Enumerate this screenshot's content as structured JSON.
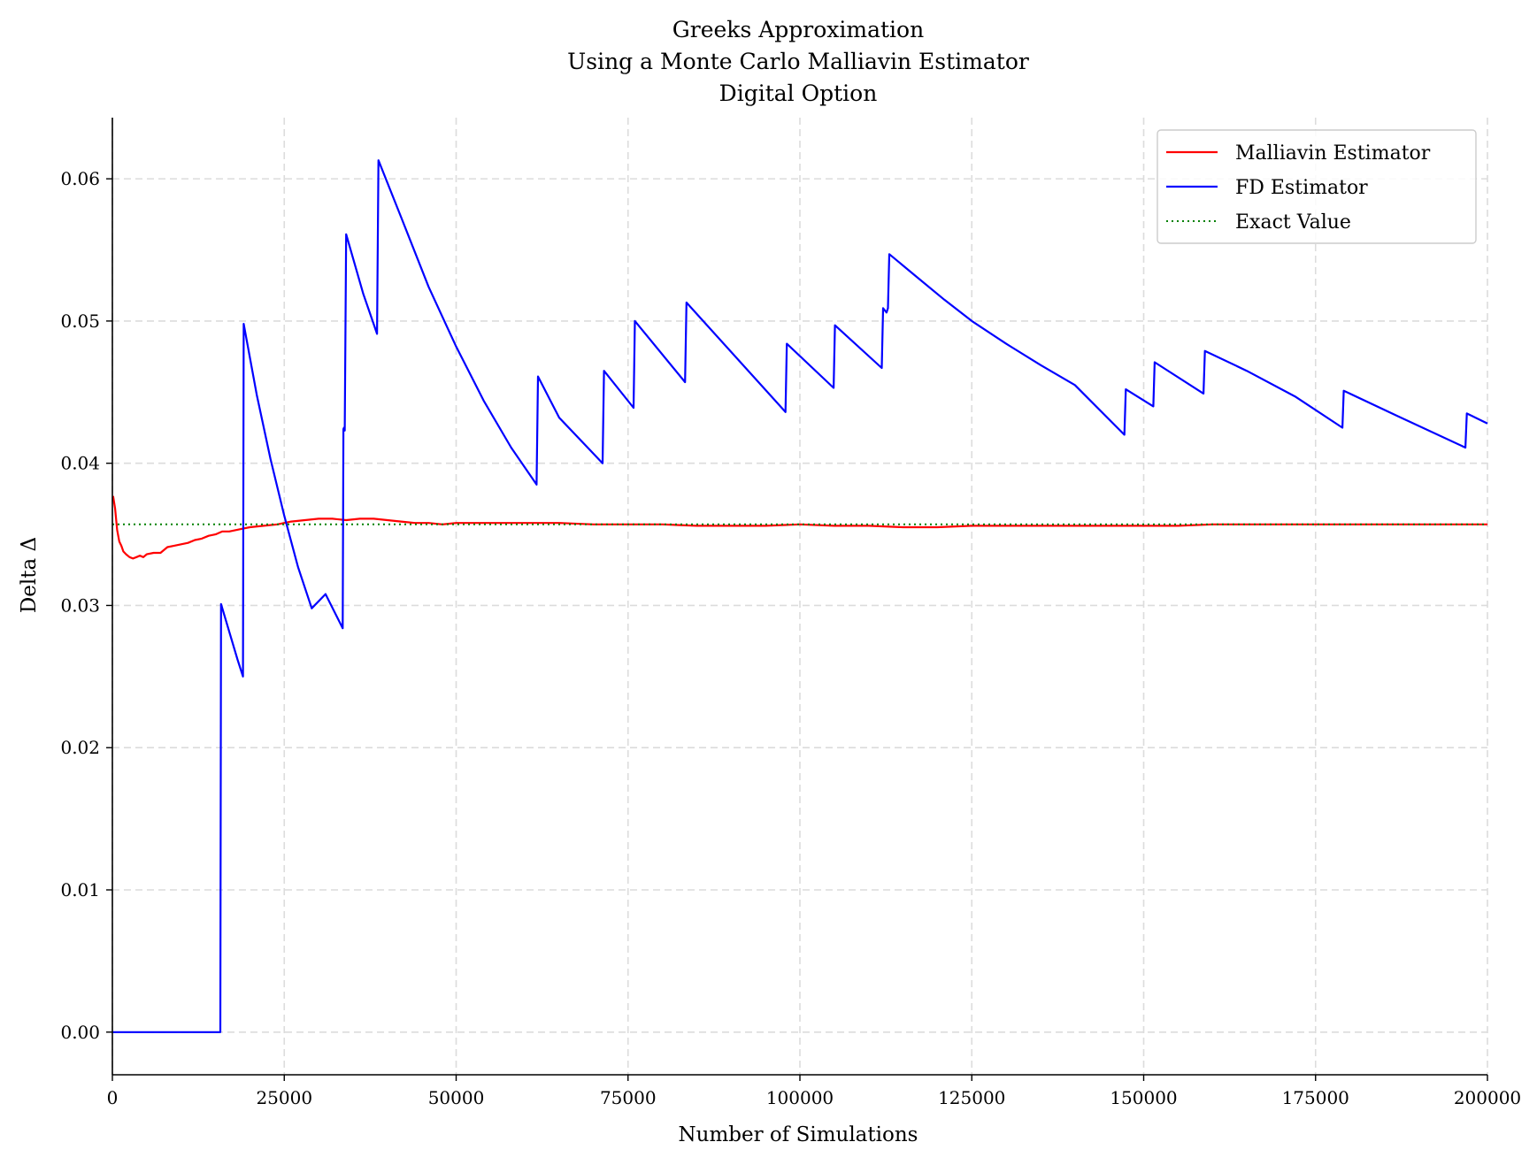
{
  "chart_data": {
    "type": "line",
    "title_lines": [
      "Greeks Approximation",
      "Using a Monte Carlo Malliavin Estimator",
      "Digital Option"
    ],
    "xlabel": "Number of Simulations",
    "ylabel": "Delta Δ",
    "xlim": [
      0,
      200000
    ],
    "ylim": [
      -0.003,
      0.0643
    ],
    "xticks": [
      0,
      25000,
      50000,
      75000,
      100000,
      125000,
      150000,
      175000,
      200000
    ],
    "xtick_labels": [
      "0",
      "25000",
      "50000",
      "75000",
      "100000",
      "125000",
      "150000",
      "175000",
      "200000"
    ],
    "yticks": [
      0.0,
      0.01,
      0.02,
      0.03,
      0.04,
      0.05,
      0.06
    ],
    "ytick_labels": [
      "0.00",
      "0.01",
      "0.02",
      "0.03",
      "0.04",
      "0.05",
      "0.06"
    ],
    "grid": true,
    "legend_position": "top-right",
    "series": [
      {
        "name": "Malliavin Estimator",
        "color": "#ff0000",
        "style": "solid",
        "x": [
          100,
          400,
          700,
          1000,
          1300,
          1600,
          2000,
          2500,
          3000,
          3500,
          4000,
          4500,
          5000,
          6000,
          7000,
          8000,
          9000,
          10000,
          11000,
          12000,
          13000,
          14000,
          15000,
          16000,
          17000,
          18000,
          19000,
          20000,
          22000,
          24000,
          26000,
          28000,
          30000,
          32000,
          34000,
          36000,
          38000,
          40000,
          42000,
          44000,
          46000,
          48000,
          50000,
          55000,
          60000,
          65000,
          70000,
          75000,
          80000,
          85000,
          90000,
          95000,
          100000,
          105000,
          110000,
          115000,
          120000,
          125000,
          130000,
          135000,
          140000,
          145000,
          150000,
          155000,
          160000,
          165000,
          170000,
          175000,
          180000,
          185000,
          190000,
          195000,
          200000
        ],
        "y": [
          0.0377,
          0.0368,
          0.0353,
          0.0345,
          0.0342,
          0.0338,
          0.0336,
          0.0334,
          0.0333,
          0.0334,
          0.0335,
          0.0334,
          0.0336,
          0.0337,
          0.0337,
          0.0341,
          0.0342,
          0.0343,
          0.0344,
          0.0346,
          0.0347,
          0.0349,
          0.035,
          0.0352,
          0.0352,
          0.0353,
          0.0354,
          0.0355,
          0.0356,
          0.0357,
          0.0359,
          0.036,
          0.0361,
          0.0361,
          0.036,
          0.0361,
          0.0361,
          0.036,
          0.0359,
          0.0358,
          0.0358,
          0.0357,
          0.0358,
          0.0358,
          0.0358,
          0.0358,
          0.0357,
          0.0357,
          0.0357,
          0.0356,
          0.0356,
          0.0356,
          0.0357,
          0.0356,
          0.0356,
          0.0355,
          0.0355,
          0.0356,
          0.0356,
          0.0356,
          0.0356,
          0.0356,
          0.0356,
          0.0356,
          0.0357,
          0.0357,
          0.0357,
          0.0357,
          0.0357,
          0.0357,
          0.0357,
          0.0357,
          0.0357
        ]
      },
      {
        "name": "FD Estimator",
        "color": "#0000ff",
        "style": "solid",
        "x": [
          0,
          15700,
          15800,
          18200,
          19000,
          19100,
          21000,
          23000,
          25000,
          27000,
          29000,
          31000,
          33500,
          33600,
          33700,
          33800,
          34000,
          36500,
          38500,
          38700,
          42000,
          46000,
          50000,
          54000,
          58000,
          61700,
          61900,
          65000,
          71300,
          71500,
          75800,
          76000,
          83300,
          83500,
          97900,
          98100,
          104900,
          105100,
          111900,
          112100,
          112600,
          112800,
          113000,
          117000,
          121000,
          125000,
          130000,
          135000,
          140000,
          147200,
          147400,
          151400,
          151600,
          158700,
          158900,
          165000,
          172000,
          178900,
          179100,
          187000,
          196800,
          197000,
          200000
        ],
        "y": [
          0.0,
          0.0,
          0.0301,
          0.0262,
          0.025,
          0.0498,
          0.0448,
          0.0403,
          0.0363,
          0.0327,
          0.0298,
          0.0308,
          0.0284,
          0.0424,
          0.0425,
          0.0423,
          0.0561,
          0.0519,
          0.0491,
          0.0613,
          0.0573,
          0.0524,
          0.0482,
          0.0444,
          0.0411,
          0.0385,
          0.0461,
          0.0432,
          0.04,
          0.0465,
          0.0439,
          0.05,
          0.0457,
          0.0513,
          0.0436,
          0.0484,
          0.0453,
          0.0497,
          0.0467,
          0.0509,
          0.0506,
          0.0509,
          0.0547,
          0.0531,
          0.0515,
          0.05,
          0.0484,
          0.0469,
          0.0455,
          0.042,
          0.0452,
          0.044,
          0.0471,
          0.0449,
          0.0479,
          0.0465,
          0.0447,
          0.0425,
          0.0451,
          0.0433,
          0.0411,
          0.0435,
          0.0428
        ]
      },
      {
        "name": "Exact Value",
        "color": "#008000",
        "style": "dotted",
        "x": [
          0,
          200000
        ],
        "y": [
          0.0357,
          0.0357
        ]
      }
    ]
  }
}
